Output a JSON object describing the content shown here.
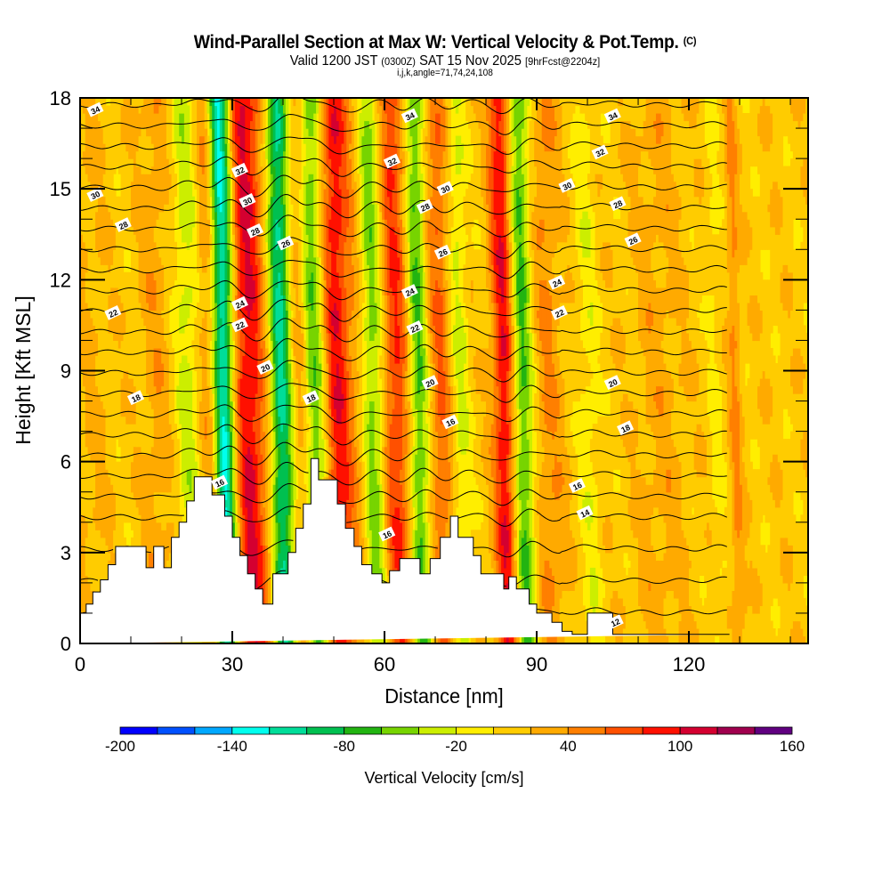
{
  "header": {
    "title": "Wind-Parallel Section at Max W: Vertical Velocity & Pot.Temp.",
    "copyright": "(C)",
    "valid_prefix": "Valid 1200 JST",
    "valid_utc": "(0300Z)",
    "valid_date": "SAT 15 Nov 2025",
    "forecast": "[9hrFcst@2204z]",
    "indices": "i,j,k,angle=71,74,24,108"
  },
  "chart_data": {
    "type": "heatmap",
    "title": "Wind-Parallel Section at Max W: Vertical Velocity & Pot.Temp.",
    "xlabel": "Distance [nm]",
    "ylabel": "Height [Kft MSL]",
    "xlim": [
      0,
      143.5
    ],
    "ylim": [
      0,
      18
    ],
    "xticks": [
      0,
      30,
      60,
      90,
      120
    ],
    "xtick_labels": [
      "0",
      "30",
      "60",
      "90",
      "120"
    ],
    "yticks": [
      0,
      3,
      6,
      9,
      12,
      15,
      18
    ],
    "ytick_labels": [
      "0",
      "3",
      "6",
      "9",
      "12",
      "15",
      "18"
    ],
    "colorbar": {
      "label": "Vertical Velocity [cm/s]",
      "bounds": [
        -200,
        -180,
        -160,
        -140,
        -120,
        -100,
        -80,
        -60,
        -40,
        -20,
        0,
        20,
        40,
        60,
        80,
        100,
        120,
        140,
        160
      ],
      "tick_values": [
        -200,
        -140,
        -80,
        -20,
        40,
        100,
        160
      ],
      "tick_labels": [
        "-200",
        "-140",
        "-80",
        "-20",
        "40",
        "100",
        "160"
      ],
      "colors": [
        "#0000ff",
        "#0050ff",
        "#00a8ff",
        "#00ffee",
        "#00dd99",
        "#00c050",
        "#22b411",
        "#77d400",
        "#ccee00",
        "#ffee00",
        "#ffcc00",
        "#ffaa00",
        "#ff7f00",
        "#ff5000",
        "#ff1000",
        "#d40030",
        "#a0004e",
        "#600080"
      ]
    },
    "w_bands_cm_s": [
      {
        "x_nm": 3,
        "w": 10,
        "width_nm": 4
      },
      {
        "x_nm": 16,
        "w": 20,
        "width_nm": 3
      },
      {
        "x_nm": 22,
        "w": -40,
        "width_nm": 2.5
      },
      {
        "x_nm": 26.5,
        "w": 40,
        "width_nm": 2
      },
      {
        "x_nm": 29.2,
        "w": -150,
        "width_nm": 2.2
      },
      {
        "x_nm": 34,
        "w": 90,
        "width_nm": 3.5
      },
      {
        "x_nm": 40.5,
        "w": -120,
        "width_nm": 2.2
      },
      {
        "x_nm": 44,
        "w": 30,
        "width_nm": 2
      },
      {
        "x_nm": 47,
        "w": -70,
        "width_nm": 2.2
      },
      {
        "x_nm": 51.5,
        "w": 80,
        "width_nm": 2.5
      },
      {
        "x_nm": 56,
        "w": 30,
        "width_nm": 3
      },
      {
        "x_nm": 58.5,
        "w": -80,
        "width_nm": 2.5
      },
      {
        "x_nm": 63,
        "w": 70,
        "width_nm": 3
      },
      {
        "x_nm": 67.5,
        "w": -80,
        "width_nm": 2
      },
      {
        "x_nm": 72,
        "w": 50,
        "width_nm": 2.5
      },
      {
        "x_nm": 75.5,
        "w": -40,
        "width_nm": 2
      },
      {
        "x_nm": 84.5,
        "w": 90,
        "width_nm": 2.2
      },
      {
        "x_nm": 88,
        "w": -80,
        "width_nm": 2.2
      },
      {
        "x_nm": 93,
        "w": 30,
        "width_nm": 3
      },
      {
        "x_nm": 101,
        "w": -30,
        "width_nm": 2.2
      },
      {
        "x_nm": 115,
        "w": 20,
        "width_nm": 5
      },
      {
        "x_nm": 126,
        "w": -20,
        "width_nm": 1.5
      },
      {
        "x_nm": 130,
        "w": 40,
        "width_nm": 1.2
      }
    ],
    "terrain_kft": {
      "x_nm": [
        0,
        1.2,
        1.2,
        2.5,
        2.5,
        4,
        4,
        5.5,
        5.5,
        7,
        7,
        13,
        13,
        14.5,
        14.5,
        16.5,
        16.5,
        18,
        18,
        19.5,
        19.5,
        21,
        21,
        22.5,
        22.5,
        26,
        26,
        28.5,
        28.5,
        30,
        30,
        31.5,
        31.5,
        33,
        33,
        34.5,
        34.5,
        36,
        36,
        38,
        38,
        41,
        41,
        42.5,
        42.5,
        44,
        44,
        45.5,
        45.5,
        47,
        47,
        50.7,
        50.7,
        52.3,
        52.3,
        54,
        54,
        55.5,
        55.5,
        57.5,
        57.5,
        59.5,
        59.5,
        61,
        61,
        63,
        63,
        67,
        67,
        69,
        69,
        71,
        71,
        73,
        73,
        74.5,
        74.5,
        77.5,
        77.5,
        79,
        79,
        83.5,
        83.5,
        84.5,
        84.5,
        86,
        86,
        88.5,
        88.5,
        90,
        90,
        93,
        93,
        95,
        95,
        97,
        97,
        100,
        100,
        105,
        105,
        128,
        128,
        130,
        130,
        143.5
      ],
      "height": [
        1,
        1,
        1.3,
        1.3,
        1.7,
        1.7,
        2.1,
        2.1,
        2.6,
        2.6,
        3.2,
        3.2,
        2.5,
        2.5,
        3.2,
        3.2,
        2.5,
        2.5,
        3.5,
        3.5,
        4,
        4,
        4.7,
        4.7,
        5.5,
        5.5,
        4.9,
        4.9,
        4.2,
        4.2,
        3.5,
        3.5,
        2.9,
        2.9,
        2.3,
        2.3,
        1.8,
        1.8,
        1.3,
        1.3,
        2.3,
        2.3,
        3,
        3,
        3.8,
        3.8,
        4.6,
        4.6,
        6.1,
        6.1,
        5.4,
        5.4,
        4.6,
        4.6,
        3.8,
        3.8,
        3.2,
        3.2,
        2.6,
        2.6,
        2.3,
        2.3,
        2,
        2,
        2.4,
        2.4,
        2.8,
        2.8,
        2.3,
        2.3,
        2.8,
        2.8,
        3.5,
        3.5,
        4.2,
        4.2,
        3.5,
        3.5,
        2.9,
        2.9,
        2.3,
        2.3,
        1.8,
        1.8,
        2.2,
        2.2,
        1.8,
        1.8,
        1.3,
        1.3,
        1,
        1,
        0.7,
        0.7,
        0.4,
        0.4,
        0.3,
        0.3,
        1,
        1,
        0.3,
        0.3
      ]
    },
    "theta_contours_C": {
      "levels": [
        12,
        13,
        14,
        15,
        16,
        17,
        18,
        19,
        20,
        21,
        22,
        23,
        24,
        25,
        26,
        27,
        28,
        29,
        30,
        31,
        32,
        33,
        34,
        35
      ],
      "labels": [
        {
          "text": "34",
          "x_nm": 3,
          "y_kft": 17.6
        },
        {
          "text": "30",
          "x_nm": 3,
          "y_kft": 14.8
        },
        {
          "text": "28",
          "x_nm": 8.5,
          "y_kft": 13.8
        },
        {
          "text": "22",
          "x_nm": 6.5,
          "y_kft": 10.9
        },
        {
          "text": "18",
          "x_nm": 11,
          "y_kft": 8.1
        },
        {
          "text": "32",
          "x_nm": 31.5,
          "y_kft": 15.6
        },
        {
          "text": "30",
          "x_nm": 33,
          "y_kft": 14.6
        },
        {
          "text": "28",
          "x_nm": 34.5,
          "y_kft": 13.6
        },
        {
          "text": "26",
          "x_nm": 40.5,
          "y_kft": 13.2
        },
        {
          "text": "24",
          "x_nm": 31.5,
          "y_kft": 11.2
        },
        {
          "text": "22",
          "x_nm": 31.5,
          "y_kft": 10.5
        },
        {
          "text": "20",
          "x_nm": 36.5,
          "y_kft": 9.1
        },
        {
          "text": "18",
          "x_nm": 45.5,
          "y_kft": 8.1
        },
        {
          "text": "16",
          "x_nm": 27.5,
          "y_kft": 5.3
        },
        {
          "text": "34",
          "x_nm": 65,
          "y_kft": 17.4
        },
        {
          "text": "32",
          "x_nm": 61.5,
          "y_kft": 15.9
        },
        {
          "text": "30",
          "x_nm": 72,
          "y_kft": 15
        },
        {
          "text": "28",
          "x_nm": 68,
          "y_kft": 14.4
        },
        {
          "text": "26",
          "x_nm": 71.5,
          "y_kft": 12.9
        },
        {
          "text": "24",
          "x_nm": 65,
          "y_kft": 11.6
        },
        {
          "text": "22",
          "x_nm": 66,
          "y_kft": 10.4
        },
        {
          "text": "20",
          "x_nm": 69,
          "y_kft": 8.6
        },
        {
          "text": "16",
          "x_nm": 73,
          "y_kft": 7.3
        },
        {
          "text": "16",
          "x_nm": 60.5,
          "y_kft": 3.6
        },
        {
          "text": "24",
          "x_nm": 94,
          "y_kft": 11.9
        },
        {
          "text": "22",
          "x_nm": 94.5,
          "y_kft": 10.9
        },
        {
          "text": "30",
          "x_nm": 96,
          "y_kft": 15.1
        },
        {
          "text": "34",
          "x_nm": 105,
          "y_kft": 17.4
        },
        {
          "text": "32",
          "x_nm": 102.5,
          "y_kft": 16.2
        },
        {
          "text": "28",
          "x_nm": 106,
          "y_kft": 14.5
        },
        {
          "text": "26",
          "x_nm": 109,
          "y_kft": 13.3
        },
        {
          "text": "20",
          "x_nm": 105,
          "y_kft": 8.6
        },
        {
          "text": "18",
          "x_nm": 107.5,
          "y_kft": 7.1
        },
        {
          "text": "16",
          "x_nm": 98,
          "y_kft": 5.2
        },
        {
          "text": "14",
          "x_nm": 99.5,
          "y_kft": 4.3
        },
        {
          "text": "12",
          "x_nm": 105.5,
          "y_kft": 0.7
        }
      ]
    }
  }
}
